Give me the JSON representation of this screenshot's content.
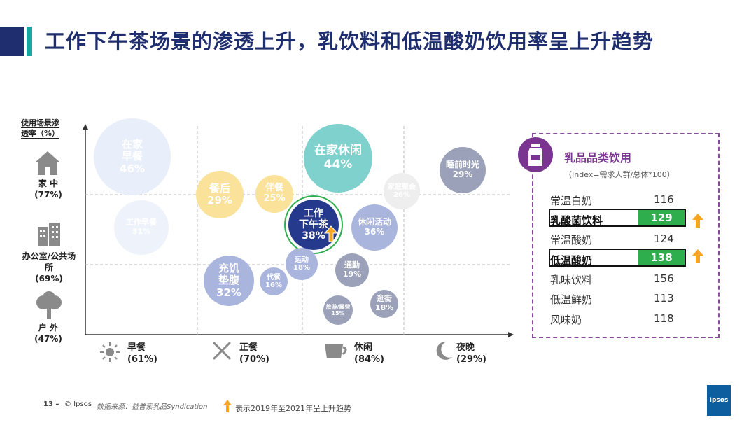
{
  "title": "工作下午茶场景的渗透上升，乳饮料和低温酸奶饮用率呈上升趋势",
  "chart_data": {
    "type": "bubble",
    "ylabel_line1": "使用场景渗",
    "ylabel_line2": "透率（%）",
    "rows": [
      {
        "name": "家 中",
        "pct": "(77%)",
        "icon": "house-icon"
      },
      {
        "name": "办公室/公共场所",
        "name1": "办公室/公共场",
        "name2": "所",
        "pct": "(69%)",
        "icon": "office-building-icon"
      },
      {
        "name": "户 外",
        "pct": "(47%)",
        "icon": "tree-icon"
      }
    ],
    "columns": [
      {
        "name": "早餐",
        "pct": "(61%)",
        "icon": "sun-icon"
      },
      {
        "name": "正餐",
        "pct": "(70%)",
        "icon": "fork-knife-icon"
      },
      {
        "name": "休闲",
        "pct": "(84%)",
        "icon": "coffee-cup-icon"
      },
      {
        "name": "夜晚",
        "pct": "(29%)",
        "icon": "moon-icon"
      }
    ],
    "bubbles": [
      {
        "label": "在家早餐",
        "l1": "在家",
        "l2": "早餐",
        "value": 46,
        "pct": "46%",
        "color": "#e8eefa",
        "faded": true
      },
      {
        "label": "工作早餐",
        "l1": "工作早餐",
        "l2": "",
        "value": 31,
        "pct": "31%",
        "color": "#eef2fb",
        "faded": true
      },
      {
        "label": "在家休闲",
        "l1": "在家休闲",
        "l2": "",
        "value": 44,
        "pct": "44%",
        "color": "#7ed1cc",
        "faded": false
      },
      {
        "label": "睡前时光",
        "l1": "睡前时光",
        "l2": "",
        "value": 29,
        "pct": "29%",
        "color": "#9aa1b8",
        "faded": false
      },
      {
        "label": "餐后",
        "l1": "餐后",
        "l2": "",
        "value": 29,
        "pct": "29%",
        "color": "#fbe29a",
        "faded": false
      },
      {
        "label": "伴餐",
        "l1": "伴餐",
        "l2": "",
        "value": 25,
        "pct": "25%",
        "color": "#fbe29a",
        "faded": false
      },
      {
        "label": "家庭聚会",
        "l1": "家庭聚会",
        "l2": "",
        "value": 26,
        "pct": "26%",
        "color": "#eeeeee",
        "faded": true
      },
      {
        "label": "工作下午茶",
        "l1": "工作",
        "l2": "下午茶",
        "value": 38,
        "pct": "38%",
        "color": "#253a8c",
        "faded": false,
        "highlight": true
      },
      {
        "label": "休闲活动",
        "l1": "休闲活动",
        "l2": "",
        "value": 36,
        "pct": "36%",
        "color": "#aab5de",
        "faded": false
      },
      {
        "label": "充饥垫腹",
        "l1": "充饥",
        "l2": "垫腹",
        "value": 32,
        "pct": "32%",
        "color": "#aab5de",
        "faded": false
      },
      {
        "label": "代餐",
        "l1": "代餐",
        "l2": "",
        "value": 16,
        "pct": "16%",
        "color": "#aab5de",
        "faded": false
      },
      {
        "label": "运动",
        "l1": "运动",
        "l2": "",
        "value": 18,
        "pct": "18%",
        "color": "#aab5de",
        "faded": false
      },
      {
        "label": "通勤",
        "l1": "通勤",
        "l2": "",
        "value": 19,
        "pct": "19%",
        "color": "#9aa1b8",
        "faded": false
      },
      {
        "label": "逛街",
        "l1": "逛街",
        "l2": "",
        "value": 18,
        "pct": "18%",
        "color": "#9aa1b8",
        "faded": false
      },
      {
        "label": "旅游/露营",
        "l1": "旅游/露营",
        "l2": "",
        "value": 15,
        "pct": "15%",
        "color": "#9aa1b8",
        "faded": false
      }
    ]
  },
  "panel": {
    "title": "乳品品类饮用",
    "subtitle": "（Index=需求人群/总体*100）",
    "items": [
      {
        "name": "常温白奶",
        "value": "116",
        "highlight": false
      },
      {
        "name": "乳酸菌饮料",
        "value": "129",
        "highlight": true
      },
      {
        "name": "常温酸奶",
        "value": "124",
        "highlight": false
      },
      {
        "name": "低温酸奶",
        "value": "138",
        "highlight": true
      },
      {
        "name": "乳味饮料",
        "value": "156",
        "highlight": false
      },
      {
        "name": "低温鲜奶",
        "value": "113",
        "highlight": false
      },
      {
        "name": "风味奶",
        "value": "118",
        "highlight": false
      }
    ]
  },
  "footer": {
    "page": "13 –",
    "copyright": "© Ipsos",
    "source": "数据来源：益普索乳品Syndication",
    "legend": "表示2019年至2021年呈上升趋势",
    "logo": "Ipsos"
  },
  "colors": {
    "accent": "#1f2e6e",
    "teal": "#1aa6a0",
    "purple": "#7a3590",
    "green": "#2fae4e",
    "arrow": "#f5a623"
  }
}
